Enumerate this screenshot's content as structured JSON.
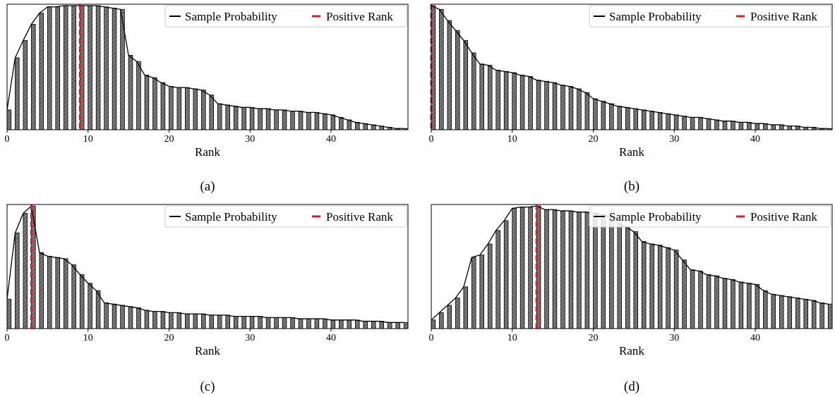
{
  "legend": {
    "sample_label": "Sample Probability",
    "positive_label": "Positive Rank",
    "sample_color": "#000000",
    "positive_color": "#e41a1c"
  },
  "bar_fill": "#7a7a7a",
  "chart_data": [
    {
      "type": "bar",
      "caption": "(a)",
      "xlabel": "Rank",
      "ylabel": "",
      "x_ticks": [
        0,
        10,
        20,
        30,
        40
      ],
      "xlim": [
        0,
        49.5
      ],
      "ylim": [
        0,
        1.0
      ],
      "positive_rank": 9,
      "grid": false,
      "legend_position": "top-right",
      "values": [
        0.16,
        0.58,
        0.72,
        0.85,
        0.94,
        0.99,
        0.99,
        1.0,
        1.0,
        1.0,
        1.0,
        1.0,
        0.99,
        0.98,
        0.97,
        0.6,
        0.55,
        0.44,
        0.42,
        0.38,
        0.35,
        0.34,
        0.34,
        0.33,
        0.32,
        0.28,
        0.21,
        0.2,
        0.19,
        0.18,
        0.18,
        0.17,
        0.17,
        0.16,
        0.16,
        0.15,
        0.15,
        0.14,
        0.14,
        0.13,
        0.12,
        0.1,
        0.08,
        0.06,
        0.05,
        0.04,
        0.03,
        0.02,
        0.01,
        0.01
      ]
    },
    {
      "type": "bar",
      "caption": "(b)",
      "xlabel": "Rank",
      "ylabel": "",
      "x_ticks": [
        0,
        10,
        20,
        30,
        40
      ],
      "xlim": [
        0,
        49.5
      ],
      "ylim": [
        0,
        1.0
      ],
      "positive_rank": 0,
      "grid": false,
      "legend_position": "top-right",
      "values": [
        1.0,
        0.97,
        0.88,
        0.8,
        0.72,
        0.62,
        0.53,
        0.52,
        0.48,
        0.47,
        0.46,
        0.44,
        0.43,
        0.4,
        0.39,
        0.38,
        0.36,
        0.35,
        0.33,
        0.3,
        0.25,
        0.23,
        0.21,
        0.19,
        0.18,
        0.17,
        0.16,
        0.15,
        0.14,
        0.13,
        0.12,
        0.11,
        0.1,
        0.1,
        0.09,
        0.08,
        0.07,
        0.07,
        0.06,
        0.06,
        0.05,
        0.05,
        0.04,
        0.04,
        0.03,
        0.03,
        0.02,
        0.02,
        0.01,
        0.01
      ]
    },
    {
      "type": "bar",
      "caption": "(c)",
      "xlabel": "Rank",
      "ylabel": "",
      "x_ticks": [
        0,
        10,
        20,
        30,
        40
      ],
      "xlim": [
        0,
        49.5
      ],
      "ylim": [
        0,
        1.0
      ],
      "positive_rank": 3,
      "grid": false,
      "legend_position": "top-right",
      "values": [
        0.24,
        0.78,
        0.94,
        1.0,
        0.62,
        0.59,
        0.58,
        0.57,
        0.52,
        0.44,
        0.37,
        0.31,
        0.21,
        0.2,
        0.19,
        0.18,
        0.17,
        0.15,
        0.14,
        0.14,
        0.13,
        0.13,
        0.12,
        0.12,
        0.12,
        0.11,
        0.11,
        0.11,
        0.1,
        0.1,
        0.1,
        0.1,
        0.09,
        0.09,
        0.09,
        0.09,
        0.08,
        0.08,
        0.08,
        0.08,
        0.07,
        0.07,
        0.07,
        0.07,
        0.06,
        0.06,
        0.06,
        0.05,
        0.05,
        0.05
      ]
    },
    {
      "type": "bar",
      "caption": "(d)",
      "xlabel": "Rank",
      "ylabel": "",
      "x_ticks": [
        0,
        10,
        20,
        30,
        40
      ],
      "xlim": [
        0,
        49.5
      ],
      "ylim": [
        0,
        1.0
      ],
      "positive_rank": 13,
      "grid": false,
      "legend_position": "top-right",
      "values": [
        0.07,
        0.13,
        0.19,
        0.25,
        0.34,
        0.58,
        0.6,
        0.69,
        0.8,
        0.88,
        0.98,
        0.99,
        0.99,
        1.0,
        0.97,
        0.97,
        0.96,
        0.96,
        0.95,
        0.95,
        0.94,
        0.93,
        0.91,
        0.86,
        0.83,
        0.79,
        0.71,
        0.69,
        0.68,
        0.66,
        0.64,
        0.56,
        0.48,
        0.47,
        0.44,
        0.43,
        0.41,
        0.4,
        0.38,
        0.37,
        0.36,
        0.31,
        0.28,
        0.27,
        0.26,
        0.25,
        0.24,
        0.23,
        0.21,
        0.2
      ]
    }
  ]
}
